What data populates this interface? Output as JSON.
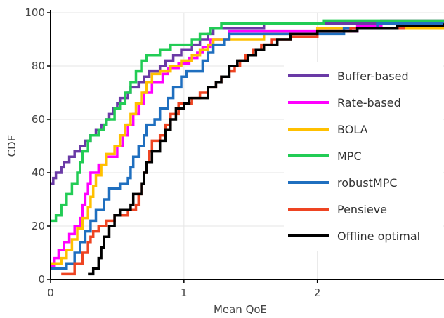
{
  "chart_data": {
    "type": "line",
    "line_shape": "step",
    "xlabel": "Mean QoE",
    "ylabel": "CDF",
    "xlim": [
      0,
      2.95
    ],
    "ylim": [
      0,
      100
    ],
    "x_ticks": [
      0,
      1,
      2
    ],
    "y_ticks": [
      0,
      20,
      40,
      60,
      80,
      100
    ],
    "x_tick_labels": [
      "0",
      "1",
      "2"
    ],
    "y_tick_labels": [
      "0",
      "20",
      "40",
      "60",
      "80",
      "100"
    ],
    "grid": true,
    "legend_position": "right",
    "series": [
      {
        "name": "Buffer-based",
        "color": "#6a3aa6",
        "points": [
          [
            0.0,
            36
          ],
          [
            0.02,
            38
          ],
          [
            0.04,
            40
          ],
          [
            0.08,
            42
          ],
          [
            0.1,
            44
          ],
          [
            0.14,
            46
          ],
          [
            0.18,
            48
          ],
          [
            0.22,
            50
          ],
          [
            0.26,
            52
          ],
          [
            0.3,
            54
          ],
          [
            0.34,
            56
          ],
          [
            0.38,
            58
          ],
          [
            0.42,
            60
          ],
          [
            0.44,
            62
          ],
          [
            0.47,
            64
          ],
          [
            0.5,
            66
          ],
          [
            0.52,
            68
          ],
          [
            0.58,
            70
          ],
          [
            0.6,
            72
          ],
          [
            0.66,
            74
          ],
          [
            0.7,
            76
          ],
          [
            0.74,
            78
          ],
          [
            0.82,
            80
          ],
          [
            0.86,
            82
          ],
          [
            0.92,
            84
          ],
          [
            0.98,
            86
          ],
          [
            1.06,
            88
          ],
          [
            1.12,
            90
          ],
          [
            1.18,
            92
          ],
          [
            1.22,
            94
          ],
          [
            1.6,
            96
          ],
          [
            2.95,
            96
          ]
        ]
      },
      {
        "name": "Rate-based",
        "color": "#ff00ff",
        "points": [
          [
            0.0,
            5
          ],
          [
            0.03,
            8
          ],
          [
            0.06,
            11
          ],
          [
            0.1,
            14
          ],
          [
            0.14,
            17
          ],
          [
            0.18,
            20
          ],
          [
            0.22,
            23
          ],
          [
            0.24,
            28
          ],
          [
            0.26,
            32
          ],
          [
            0.28,
            36
          ],
          [
            0.3,
            40
          ],
          [
            0.36,
            43
          ],
          [
            0.42,
            46
          ],
          [
            0.5,
            50
          ],
          [
            0.54,
            54
          ],
          [
            0.58,
            58
          ],
          [
            0.62,
            62
          ],
          [
            0.66,
            66
          ],
          [
            0.7,
            70
          ],
          [
            0.76,
            74
          ],
          [
            0.84,
            77
          ],
          [
            0.88,
            79
          ],
          [
            0.96,
            81
          ],
          [
            1.04,
            83
          ],
          [
            1.1,
            85
          ],
          [
            1.14,
            87
          ],
          [
            1.2,
            90
          ],
          [
            1.34,
            93
          ],
          [
            1.64,
            93
          ],
          [
            2.3,
            95
          ],
          [
            2.48,
            97
          ],
          [
            2.95,
            97
          ]
        ]
      },
      {
        "name": "BOLA",
        "color": "#ffc000",
        "points": [
          [
            0.0,
            6
          ],
          [
            0.08,
            8
          ],
          [
            0.12,
            11
          ],
          [
            0.16,
            15
          ],
          [
            0.2,
            19
          ],
          [
            0.24,
            23
          ],
          [
            0.28,
            27
          ],
          [
            0.3,
            31
          ],
          [
            0.32,
            35
          ],
          [
            0.34,
            39
          ],
          [
            0.38,
            43
          ],
          [
            0.42,
            47
          ],
          [
            0.48,
            50
          ],
          [
            0.52,
            54
          ],
          [
            0.56,
            58
          ],
          [
            0.6,
            62
          ],
          [
            0.64,
            66
          ],
          [
            0.68,
            70
          ],
          [
            0.72,
            74
          ],
          [
            0.76,
            77
          ],
          [
            0.82,
            78
          ],
          [
            0.9,
            80
          ],
          [
            0.98,
            82
          ],
          [
            1.06,
            84
          ],
          [
            1.12,
            86
          ],
          [
            1.18,
            88
          ],
          [
            1.22,
            90
          ],
          [
            1.6,
            92
          ],
          [
            2.0,
            94
          ],
          [
            2.95,
            94
          ]
        ]
      },
      {
        "name": "MPC",
        "color": "#22cc55",
        "points": [
          [
            0.0,
            22
          ],
          [
            0.04,
            24
          ],
          [
            0.08,
            28
          ],
          [
            0.12,
            32
          ],
          [
            0.16,
            36
          ],
          [
            0.2,
            40
          ],
          [
            0.22,
            44
          ],
          [
            0.24,
            48
          ],
          [
            0.28,
            52
          ],
          [
            0.3,
            54
          ],
          [
            0.36,
            56
          ],
          [
            0.4,
            58
          ],
          [
            0.42,
            60
          ],
          [
            0.48,
            64
          ],
          [
            0.52,
            66
          ],
          [
            0.56,
            70
          ],
          [
            0.6,
            74
          ],
          [
            0.64,
            78
          ],
          [
            0.68,
            82
          ],
          [
            0.72,
            84
          ],
          [
            0.82,
            86
          ],
          [
            0.9,
            88
          ],
          [
            1.06,
            90
          ],
          [
            1.12,
            92
          ],
          [
            1.2,
            94
          ],
          [
            1.28,
            96
          ],
          [
            2.05,
            97
          ],
          [
            2.95,
            97
          ]
        ]
      },
      {
        "name": "robustMPC",
        "color": "#1f6fbf",
        "points": [
          [
            0.0,
            4
          ],
          [
            0.12,
            6
          ],
          [
            0.18,
            10
          ],
          [
            0.22,
            14
          ],
          [
            0.26,
            18
          ],
          [
            0.3,
            22
          ],
          [
            0.34,
            26
          ],
          [
            0.4,
            30
          ],
          [
            0.44,
            34
          ],
          [
            0.52,
            36
          ],
          [
            0.58,
            38
          ],
          [
            0.6,
            42
          ],
          [
            0.62,
            46
          ],
          [
            0.66,
            50
          ],
          [
            0.7,
            54
          ],
          [
            0.72,
            58
          ],
          [
            0.78,
            60
          ],
          [
            0.82,
            64
          ],
          [
            0.88,
            68
          ],
          [
            0.92,
            72
          ],
          [
            0.98,
            76
          ],
          [
            1.02,
            78
          ],
          [
            1.14,
            82
          ],
          [
            1.18,
            85
          ],
          [
            1.22,
            88
          ],
          [
            1.3,
            90
          ],
          [
            1.34,
            92
          ],
          [
            1.6,
            92
          ],
          [
            2.2,
            94
          ],
          [
            2.45,
            96
          ],
          [
            2.95,
            96
          ]
        ]
      },
      {
        "name": "Pensieve",
        "color": "#ee4422",
        "points": [
          [
            0.08,
            2
          ],
          [
            0.18,
            6
          ],
          [
            0.24,
            10
          ],
          [
            0.28,
            14
          ],
          [
            0.3,
            16
          ],
          [
            0.32,
            18
          ],
          [
            0.36,
            20
          ],
          [
            0.42,
            22
          ],
          [
            0.48,
            24
          ],
          [
            0.58,
            26
          ],
          [
            0.64,
            28
          ],
          [
            0.66,
            32
          ],
          [
            0.68,
            36
          ],
          [
            0.7,
            40
          ],
          [
            0.72,
            44
          ],
          [
            0.74,
            48
          ],
          [
            0.76,
            52
          ],
          [
            0.82,
            54
          ],
          [
            0.86,
            58
          ],
          [
            0.9,
            62
          ],
          [
            0.96,
            66
          ],
          [
            1.06,
            68
          ],
          [
            1.12,
            70
          ],
          [
            1.18,
            72
          ],
          [
            1.24,
            74
          ],
          [
            1.28,
            76
          ],
          [
            1.34,
            78
          ],
          [
            1.38,
            80
          ],
          [
            1.42,
            82
          ],
          [
            1.46,
            84
          ],
          [
            1.52,
            86
          ],
          [
            1.58,
            88
          ],
          [
            1.66,
            90
          ],
          [
            1.8,
            91
          ],
          [
            2.0,
            93
          ],
          [
            2.25,
            94
          ],
          [
            2.65,
            95
          ],
          [
            2.95,
            95
          ]
        ]
      },
      {
        "name": "Offline optimal",
        "color": "#000000",
        "points": [
          [
            0.28,
            2
          ],
          [
            0.32,
            4
          ],
          [
            0.36,
            8
          ],
          [
            0.38,
            12
          ],
          [
            0.4,
            16
          ],
          [
            0.44,
            20
          ],
          [
            0.48,
            24
          ],
          [
            0.52,
            26
          ],
          [
            0.6,
            28
          ],
          [
            0.62,
            32
          ],
          [
            0.68,
            36
          ],
          [
            0.7,
            40
          ],
          [
            0.72,
            44
          ],
          [
            0.76,
            48
          ],
          [
            0.82,
            52
          ],
          [
            0.86,
            56
          ],
          [
            0.9,
            60
          ],
          [
            0.94,
            64
          ],
          [
            1.0,
            66
          ],
          [
            1.04,
            68
          ],
          [
            1.12,
            68
          ],
          [
            1.18,
            72
          ],
          [
            1.24,
            74
          ],
          [
            1.28,
            76
          ],
          [
            1.34,
            80
          ],
          [
            1.4,
            82
          ],
          [
            1.48,
            84
          ],
          [
            1.54,
            86
          ],
          [
            1.6,
            88
          ],
          [
            1.7,
            90
          ],
          [
            1.8,
            92
          ],
          [
            2.0,
            93
          ],
          [
            2.3,
            94
          ],
          [
            2.6,
            95
          ],
          [
            2.95,
            96
          ]
        ]
      }
    ]
  }
}
